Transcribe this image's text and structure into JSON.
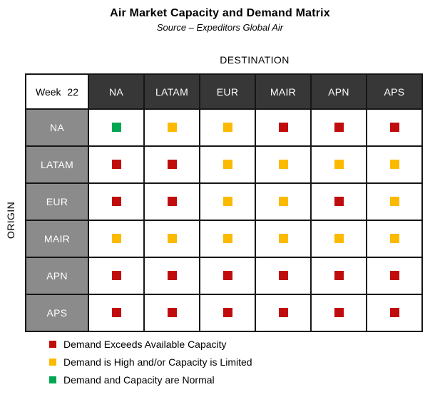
{
  "chart_data": {
    "type": "heatmap",
    "title": "Air Market Capacity and Demand Matrix",
    "subtitle": "Source – Expeditors Global Air",
    "xlabel": "DESTINATION",
    "ylabel": "ORIGIN",
    "week_label": "Week 22",
    "x": [
      "NA",
      "LATAM",
      "EUR",
      "MAIR",
      "APN",
      "APS"
    ],
    "y": [
      "NA",
      "LATAM",
      "EUR",
      "MAIR",
      "APN",
      "APS"
    ],
    "values": [
      [
        "normal",
        "limited",
        "limited",
        "exceeds",
        "exceeds",
        "exceeds"
      ],
      [
        "exceeds",
        "exceeds",
        "limited",
        "limited",
        "limited",
        "limited"
      ],
      [
        "exceeds",
        "exceeds",
        "limited",
        "limited",
        "exceeds",
        "limited"
      ],
      [
        "limited",
        "limited",
        "limited",
        "limited",
        "limited",
        "limited"
      ],
      [
        "exceeds",
        "exceeds",
        "exceeds",
        "exceeds",
        "exceeds",
        "exceeds"
      ],
      [
        "exceeds",
        "exceeds",
        "exceeds",
        "exceeds",
        "exceeds",
        "exceeds"
      ]
    ],
    "colors": {
      "exceeds": "#C00C0C",
      "limited": "#FBBA00",
      "normal": "#00A651"
    },
    "legend_position": "bottom-left",
    "grid": true,
    "legend": [
      {
        "status": "exceeds",
        "label": "Demand Exceeds Available Capacity"
      },
      {
        "status": "limited",
        "label": "Demand is High and/or Capacity is Limited"
      },
      {
        "status": "normal",
        "label": "Demand and Capacity are Normal"
      }
    ]
  },
  "styles": {
    "header_bg": "#373737",
    "row_label_bg": "#8B8B8B",
    "border_color": "#161616"
  }
}
